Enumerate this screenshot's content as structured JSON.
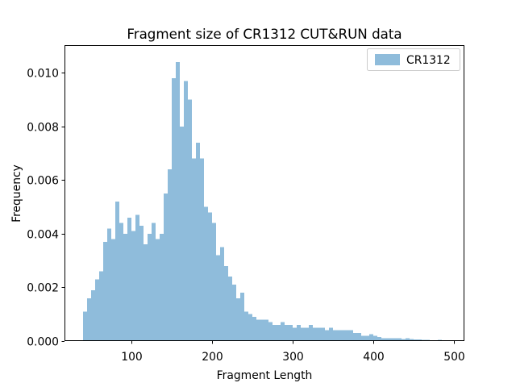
{
  "chart_data": {
    "type": "bar",
    "subtype": "histogram",
    "title": "Fragment size of CR1312 CUT&RUN data",
    "xlabel": "Fragment Length",
    "ylabel": "Frequency",
    "legend": {
      "position": "upper right",
      "entries": [
        {
          "label": "CR1312",
          "color": "#8fbcdb"
        }
      ]
    },
    "bar_color": "#8fbcdb",
    "legend_edge_color": "#cccccc",
    "axis_color": "#000000",
    "grid": false,
    "bin_start": 40,
    "bin_width": 5,
    "xlim": [
      17,
      513
    ],
    "ylim": [
      0,
      0.011
    ],
    "x_ticks": [
      100,
      200,
      300,
      400,
      500
    ],
    "y_ticks": [
      {
        "value": 0.0,
        "label": "0.000"
      },
      {
        "value": 0.002,
        "label": "0.002"
      },
      {
        "value": 0.004,
        "label": "0.004"
      },
      {
        "value": 0.006,
        "label": "0.006"
      },
      {
        "value": 0.008,
        "label": "0.008"
      },
      {
        "value": 0.01,
        "label": "0.010"
      }
    ],
    "values": [
      0.0011,
      0.0016,
      0.0019,
      0.0023,
      0.0026,
      0.0037,
      0.0042,
      0.0038,
      0.0052,
      0.0044,
      0.004,
      0.0046,
      0.0041,
      0.0047,
      0.0043,
      0.0036,
      0.004,
      0.0044,
      0.0038,
      0.004,
      0.0055,
      0.0064,
      0.0098,
      0.0104,
      0.008,
      0.0097,
      0.009,
      0.0068,
      0.0074,
      0.0068,
      0.005,
      0.0048,
      0.0044,
      0.0032,
      0.0035,
      0.0028,
      0.0024,
      0.0021,
      0.0016,
      0.0018,
      0.0011,
      0.001,
      0.0009,
      0.0008,
      0.0008,
      0.0008,
      0.0007,
      0.0006,
      0.0006,
      0.0007,
      0.0006,
      0.0006,
      0.0005,
      0.0006,
      0.0005,
      0.0005,
      0.0006,
      0.0005,
      0.0005,
      0.0005,
      0.0004,
      0.0005,
      0.0004,
      0.0004,
      0.0004,
      0.0004,
      0.0004,
      0.0003,
      0.0003,
      0.0002,
      0.0002,
      0.00025,
      0.0002,
      0.00015,
      0.0001,
      0.0001,
      0.0001,
      0.0001,
      0.0001,
      8e-05,
      0.0001,
      8e-05,
      6e-05,
      6e-05,
      5e-05,
      4e-05,
      3e-05,
      2e-05,
      4e-05,
      2e-05
    ]
  }
}
